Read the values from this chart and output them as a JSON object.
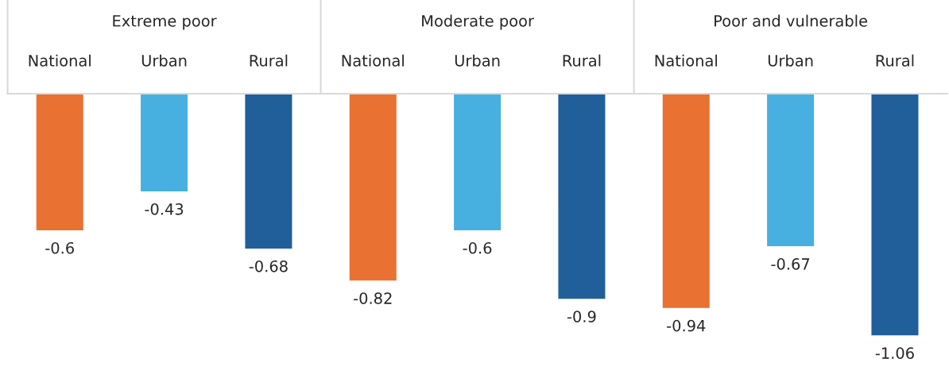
{
  "chart_data": {
    "type": "bar",
    "categories": [
      "National",
      "Urban",
      "Rural",
      "National",
      "Urban",
      "Rural",
      "National",
      "Urban",
      "Rural"
    ],
    "values": [
      -0.6,
      -0.43,
      -0.68,
      -0.82,
      -0.6,
      -0.9,
      -0.94,
      -0.67,
      -1.06
    ],
    "colors": [
      "#e97132",
      "#47b0e0",
      "#215f9a",
      "#e97132",
      "#47b0e0",
      "#215f9a",
      "#e97132",
      "#47b0e0",
      "#215f9a"
    ],
    "annotations": [
      "Extreme poor",
      "Moderate poor",
      "Poor and vulnerable"
    ],
    "data_labels": true,
    "grid": false,
    "legend": false
  }
}
